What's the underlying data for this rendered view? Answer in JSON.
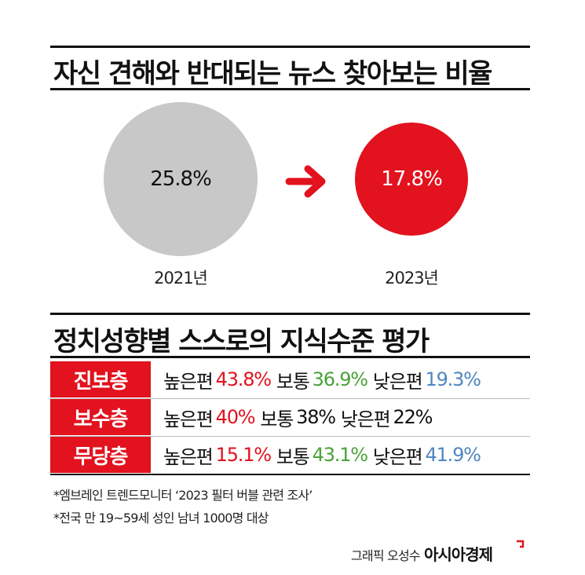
{
  "colors": {
    "red": "#e2121e",
    "gray": "#c8c8c8",
    "green": "#4aa23a",
    "blue": "#4f86c1"
  },
  "chart_data": [
    {
      "type": "pie",
      "title": "자신 견해와 반대되는 뉴스 찾아보는 비율",
      "categories": [
        "2021년",
        "2023년"
      ],
      "values": [
        25.8,
        17.8
      ],
      "value_labels": [
        "25.8%",
        "17.8%"
      ],
      "unit": "%"
    },
    {
      "type": "table",
      "title": "정치성향별 스스로의 지식수준 평가",
      "columns": [
        "높은편",
        "보통",
        "낮은편"
      ],
      "rows": [
        {
          "group": "진보층",
          "values": [
            43.8,
            36.9,
            19.3
          ],
          "labels": [
            "43.8%",
            "36.9%",
            "19.3%"
          ]
        },
        {
          "group": "보수층",
          "values": [
            40,
            38,
            22
          ],
          "labels": [
            "40%",
            "38%",
            "22%"
          ]
        },
        {
          "group": "무당층",
          "values": [
            15.1,
            43.1,
            41.9
          ],
          "labels": [
            "15.1%",
            "43.1%",
            "41.9%"
          ]
        }
      ]
    }
  ],
  "notes": [
    "*엠브레인 트렌드모니터 ‘2023 필터 버블 관련 조사’",
    "*전국 만 19~59세 성인 남녀 1000명 대상"
  ],
  "credit": "그래픽 오성수",
  "brand": "아시아경제"
}
